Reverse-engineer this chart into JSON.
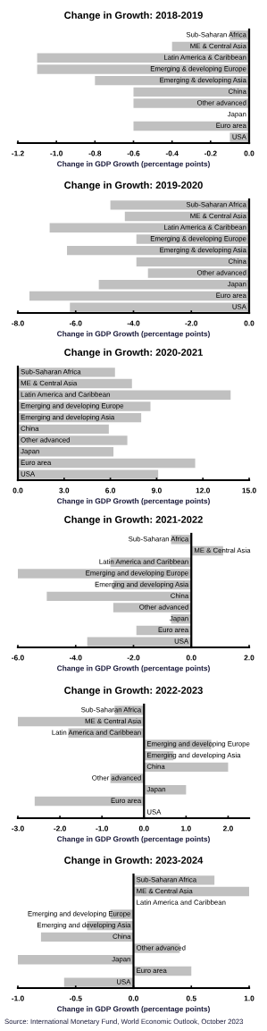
{
  "chart_data": [
    {
      "type": "bar",
      "orientation": "horizontal",
      "title": "Change in Growth: 2018-2019",
      "xlabel": "Change in GDP Growth (percentage points)",
      "color": "#c0c0c0",
      "categories": [
        "Sub-Saharan Africa",
        "ME & Central Asia",
        "Latin America & Caribbean",
        "Emerging & developing Europe",
        "Emerging & developing Asia",
        "China",
        "Other advanced",
        "Japan",
        "Euro area",
        "USA"
      ],
      "values": [
        -0.1,
        -0.4,
        -1.1,
        -1.1,
        -0.8,
        -0.6,
        -0.6,
        0.0,
        -0.6,
        -0.1
      ],
      "xlim": [
        -1.2,
        0.0
      ],
      "xticks": [
        {
          "value": -1.2,
          "label": "-1.2"
        },
        {
          "value": -1.0,
          "label": "-1.0"
        },
        {
          "value": -0.8,
          "label": "-0.8"
        },
        {
          "value": -0.6,
          "label": "-0.6"
        },
        {
          "value": -0.4,
          "label": "-0.4"
        },
        {
          "value": -0.2,
          "label": "-0.2"
        },
        {
          "value": 0,
          "label": "0.0"
        }
      ]
    },
    {
      "type": "bar",
      "orientation": "horizontal",
      "title": "Change in Growth: 2019-2020",
      "xlabel": "Change in GDP Growth (percentage points)",
      "color": "#c0c0c0",
      "categories": [
        "Sub-Saharan Africa",
        "ME & Central Asia",
        "Latin America & Caribbean",
        "Emerging & developing Europe",
        "Emerging & developing Asia",
        "China",
        "Other advanced",
        "Japan",
        "Euro area",
        "USA"
      ],
      "values": [
        -4.8,
        -4.3,
        -6.9,
        -3.9,
        -6.3,
        -3.9,
        -3.5,
        -5.2,
        -7.6,
        -6.2
      ],
      "xlim": [
        -8.0,
        0.0
      ],
      "xticks": [
        {
          "value": -8,
          "label": "-8.0"
        },
        {
          "value": -6,
          "label": "-6.0"
        },
        {
          "value": -4,
          "label": "-4.0"
        },
        {
          "value": -2,
          "label": "-2.0"
        },
        {
          "value": 0,
          "label": "0.0"
        }
      ]
    },
    {
      "type": "bar",
      "orientation": "horizontal",
      "title": "Change in Growth: 2020-2021",
      "xlabel": "Change in GDP Growth (percentage points)",
      "color": "#c0c0c0",
      "categories": [
        "Sub-Saharan Africa",
        "ME & Central Asia",
        "Latin America and Caribbean",
        "Emerging and developing Europe",
        "Emerging and developing Asia",
        "China",
        "Other advanced",
        "Japan",
        "Euro area",
        "USA"
      ],
      "values": [
        6.3,
        7.4,
        13.8,
        8.6,
        8.0,
        5.9,
        7.1,
        6.2,
        11.5,
        9.1
      ],
      "xlim": [
        0.0,
        15.0
      ],
      "xticks": [
        {
          "value": 0,
          "label": "0.0"
        },
        {
          "value": 3,
          "label": "3.0"
        },
        {
          "value": 6,
          "label": "6.0"
        },
        {
          "value": 9,
          "label": "9.0"
        },
        {
          "value": 12,
          "label": "12.0"
        },
        {
          "value": 15,
          "label": "15.0"
        }
      ]
    },
    {
      "type": "bar",
      "orientation": "horizontal",
      "title": "Change in Growth: 2021-2022",
      "xlabel": "Change in GDP Growth (percentage points)",
      "color": "#c0c0c0",
      "categories": [
        "Sub-Saharan Africa",
        "ME & Central Asia",
        "Latin America and Caribbean",
        "Emerging and developing Europe",
        "Emerging and developing Asia",
        "China",
        "Other advanced",
        "Japan",
        "Euro area",
        "USA"
      ],
      "values": [
        -0.7,
        1.1,
        -2.8,
        -6.0,
        -2.7,
        -5.0,
        -2.7,
        -0.7,
        -1.9,
        -3.6
      ],
      "xlim": [
        -6.0,
        2.0
      ],
      "xticks": [
        {
          "value": -6,
          "label": "-6.0"
        },
        {
          "value": -4,
          "label": "-4.0"
        },
        {
          "value": -2,
          "label": "-2.0"
        },
        {
          "value": 0,
          "label": "0.0"
        },
        {
          "value": 2,
          "label": "2.0"
        }
      ]
    },
    {
      "type": "bar",
      "orientation": "horizontal",
      "title": "Change in Growth: 2022-2023",
      "xlabel": "Change in GDP Growth (percentage points)",
      "color": "#c0c0c0",
      "categories": [
        "Sub-Saharan Africa",
        "ME & Central Asia",
        "Latin America and Caribbean",
        "Emerging and developing Europe",
        "Emerging and developing Asia",
        "China",
        "Other advanced",
        "Japan",
        "Euro area",
        "USA"
      ],
      "values": [
        -0.7,
        -3.0,
        -1.8,
        1.6,
        0.7,
        2.0,
        -0.8,
        1.0,
        -2.6,
        0.0
      ],
      "xlim": [
        -3.0,
        2.5
      ],
      "xticks": [
        {
          "value": -3,
          "label": "-3.0"
        },
        {
          "value": -2,
          "label": "-2.0"
        },
        {
          "value": -1,
          "label": "-1.0"
        },
        {
          "value": 0,
          "label": "0.0"
        },
        {
          "value": 1,
          "label": "1.0"
        },
        {
          "value": 2,
          "label": "2.0"
        }
      ]
    },
    {
      "type": "bar",
      "orientation": "horizontal",
      "title": "Change in Growth: 2023-2024",
      "xlabel": "Change in GDP Growth (percentage points)",
      "color": "#c0c0c0",
      "categories": [
        "Sub-Saharan Africa",
        "ME & Central Asia",
        "Latin America and Caribbean",
        "Emerging and developing Europe",
        "Emerging and developing Asia",
        "China",
        "Other advanced",
        "Japan",
        "Euro area",
        "USA"
      ],
      "values": [
        0.7,
        1.0,
        0.0,
        -0.2,
        -0.4,
        -0.8,
        0.4,
        -1.0,
        0.5,
        -0.6
      ],
      "xlim": [
        -1.0,
        1.0
      ],
      "xticks": [
        {
          "value": -1,
          "label": "-1.0"
        },
        {
          "value": -0.5,
          "label": "-0.5"
        },
        {
          "value": 0,
          "label": "0.0"
        },
        {
          "value": 0.5,
          "label": "0.5"
        },
        {
          "value": 1,
          "label": "1.0"
        }
      ],
      "annotations": [
        "Source: International Monetary Fund, World Economic Outlook, October 2023"
      ]
    }
  ]
}
